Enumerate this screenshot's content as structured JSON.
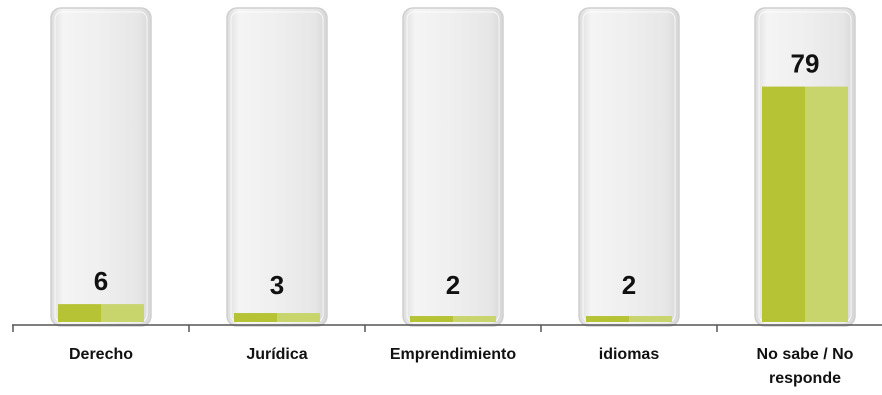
{
  "chart_data": {
    "type": "bar",
    "categories": [
      "Derecho",
      "Jurídica",
      "Emprendimiento",
      "idiomas",
      "No sabe / No responde"
    ],
    "category_lines": [
      [
        "Derecho"
      ],
      [
        "Jurídica"
      ],
      [
        "Emprendimiento"
      ],
      [
        "idiomas"
      ],
      [
        "No sabe / No",
        "responde"
      ]
    ],
    "values": [
      6,
      3,
      2,
      2,
      79
    ],
    "data_labels": [
      "6",
      "3",
      "2",
      "2",
      "79"
    ],
    "ylim": [
      0,
      100
    ],
    "title": "",
    "xlabel": "",
    "ylabel": "",
    "grid": false,
    "legend": "none",
    "colors": {
      "fill_dark": "#b5c334",
      "fill_light": "#c8d46c",
      "tube_outer": "#e8e8e8",
      "tube_inner": "#f2f2f2",
      "tube_edge": "#cfcfcf",
      "axis": "#555555",
      "text": "#111111"
    }
  }
}
